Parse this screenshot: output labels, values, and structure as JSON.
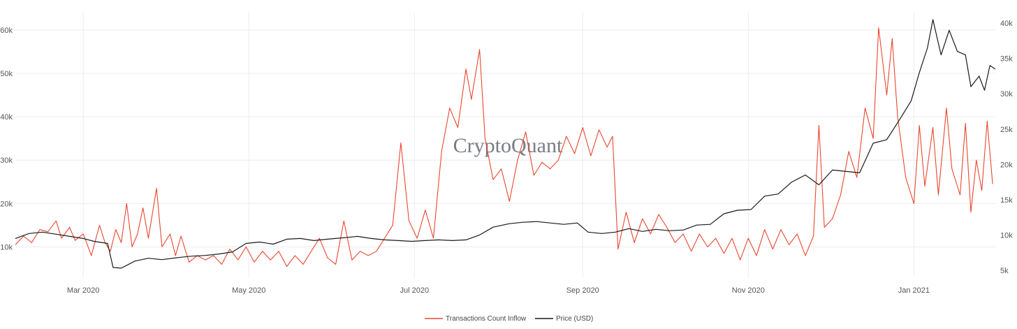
{
  "watermark": "CryptoQuant",
  "colors": {
    "inflow": "#e8472f",
    "price": "#1a1a1a",
    "grid": "#ececec"
  },
  "chart_data": {
    "type": "line",
    "title": "",
    "x_range": [
      "2020-02-05",
      "2021-01-31"
    ],
    "x_ticks": [
      {
        "date": "2020-03-01",
        "label": "Mar 2020"
      },
      {
        "date": "2020-05-01",
        "label": "May 2020"
      },
      {
        "date": "2020-07-01",
        "label": "Jul 2020"
      },
      {
        "date": "2020-09-01",
        "label": "Sep 2020"
      },
      {
        "date": "2020-11-01",
        "label": "Nov 2020"
      },
      {
        "date": "2021-01-01",
        "label": "Jan 2021"
      }
    ],
    "y_left": {
      "range": [
        3000,
        64000
      ],
      "ticks": [
        10000,
        20000,
        30000,
        40000,
        50000,
        60000
      ],
      "tick_labels": [
        "10k",
        "20k",
        "30k",
        "40k",
        "50k",
        "60k"
      ]
    },
    "y_right": {
      "range": [
        4000,
        41500
      ],
      "ticks": [
        5000,
        10000,
        15000,
        20000,
        25000,
        30000,
        35000,
        40000
      ],
      "tick_labels": [
        "5k",
        "10k",
        "15k",
        "20k",
        "25k",
        "30k",
        "35k",
        "40k"
      ]
    },
    "legend": {
      "position": "bottom-center"
    },
    "grid": true,
    "series": [
      {
        "name": "Transactions Count Inflow",
        "axis": "left",
        "points": [
          [
            "2020-02-05",
            10500
          ],
          [
            "2020-02-08",
            12500
          ],
          [
            "2020-02-11",
            11000
          ],
          [
            "2020-02-14",
            14000
          ],
          [
            "2020-02-17",
            13500
          ],
          [
            "2020-02-20",
            16000
          ],
          [
            "2020-02-22",
            12000
          ],
          [
            "2020-02-25",
            14500
          ],
          [
            "2020-02-27",
            11500
          ],
          [
            "2020-03-01",
            13000
          ],
          [
            "2020-03-04",
            8000
          ],
          [
            "2020-03-07",
            15000
          ],
          [
            "2020-03-09",
            11000
          ],
          [
            "2020-03-11",
            9000
          ],
          [
            "2020-03-13",
            14000
          ],
          [
            "2020-03-15",
            11000
          ],
          [
            "2020-03-17",
            20000
          ],
          [
            "2020-03-19",
            10000
          ],
          [
            "2020-03-21",
            13000
          ],
          [
            "2020-03-23",
            19000
          ],
          [
            "2020-03-25",
            12000
          ],
          [
            "2020-03-28",
            23500
          ],
          [
            "2020-03-30",
            10000
          ],
          [
            "2020-04-02",
            13000
          ],
          [
            "2020-04-04",
            8000
          ],
          [
            "2020-04-06",
            12500
          ],
          [
            "2020-04-09",
            6500
          ],
          [
            "2020-04-12",
            8000
          ],
          [
            "2020-04-15",
            7000
          ],
          [
            "2020-04-18",
            8000
          ],
          [
            "2020-04-21",
            6000
          ],
          [
            "2020-04-24",
            9500
          ],
          [
            "2020-04-27",
            7000
          ],
          [
            "2020-04-30",
            10000
          ],
          [
            "2020-05-03",
            6500
          ],
          [
            "2020-05-06",
            9000
          ],
          [
            "2020-05-09",
            7000
          ],
          [
            "2020-05-12",
            9000
          ],
          [
            "2020-05-15",
            5500
          ],
          [
            "2020-05-18",
            8000
          ],
          [
            "2020-05-21",
            6000
          ],
          [
            "2020-05-24",
            9000
          ],
          [
            "2020-05-27",
            12000
          ],
          [
            "2020-05-30",
            7500
          ],
          [
            "2020-06-02",
            6000
          ],
          [
            "2020-06-05",
            16000
          ],
          [
            "2020-06-08",
            7000
          ],
          [
            "2020-06-11",
            9000
          ],
          [
            "2020-06-14",
            8000
          ],
          [
            "2020-06-17",
            9000
          ],
          [
            "2020-06-20",
            12000
          ],
          [
            "2020-06-23",
            15000
          ],
          [
            "2020-06-26",
            34000
          ],
          [
            "2020-06-29",
            16000
          ],
          [
            "2020-07-02",
            12000
          ],
          [
            "2020-07-05",
            18500
          ],
          [
            "2020-07-08",
            12000
          ],
          [
            "2020-07-11",
            32000
          ],
          [
            "2020-07-14",
            42000
          ],
          [
            "2020-07-17",
            37500
          ],
          [
            "2020-07-20",
            51000
          ],
          [
            "2020-07-22",
            44000
          ],
          [
            "2020-07-25",
            55500
          ],
          [
            "2020-07-27",
            35000
          ],
          [
            "2020-07-30",
            25500
          ],
          [
            "2020-08-02",
            28000
          ],
          [
            "2020-08-05",
            20500
          ],
          [
            "2020-08-08",
            30000
          ],
          [
            "2020-08-11",
            36500
          ],
          [
            "2020-08-14",
            26500
          ],
          [
            "2020-08-17",
            29500
          ],
          [
            "2020-08-20",
            28000
          ],
          [
            "2020-08-23",
            30000
          ],
          [
            "2020-08-26",
            35500
          ],
          [
            "2020-08-29",
            31500
          ],
          [
            "2020-09-01",
            37500
          ],
          [
            "2020-09-04",
            31000
          ],
          [
            "2020-09-07",
            37000
          ],
          [
            "2020-09-10",
            33000
          ],
          [
            "2020-09-12",
            35500
          ],
          [
            "2020-09-14",
            9500
          ],
          [
            "2020-09-17",
            18000
          ],
          [
            "2020-09-20",
            11000
          ],
          [
            "2020-09-23",
            16500
          ],
          [
            "2020-09-26",
            13000
          ],
          [
            "2020-09-29",
            17500
          ],
          [
            "2020-10-02",
            14500
          ],
          [
            "2020-10-05",
            11000
          ],
          [
            "2020-10-08",
            13000
          ],
          [
            "2020-10-11",
            9000
          ],
          [
            "2020-10-14",
            13000
          ],
          [
            "2020-10-17",
            10000
          ],
          [
            "2020-10-20",
            12000
          ],
          [
            "2020-10-23",
            8500
          ],
          [
            "2020-10-26",
            12000
          ],
          [
            "2020-10-29",
            7000
          ],
          [
            "2020-11-01",
            12000
          ],
          [
            "2020-11-04",
            8000
          ],
          [
            "2020-11-07",
            14000
          ],
          [
            "2020-11-10",
            9500
          ],
          [
            "2020-11-13",
            14000
          ],
          [
            "2020-11-16",
            10500
          ],
          [
            "2020-11-19",
            13000
          ],
          [
            "2020-11-22",
            8000
          ],
          [
            "2020-11-25",
            12500
          ],
          [
            "2020-11-27",
            38000
          ],
          [
            "2020-11-29",
            14500
          ],
          [
            "2020-12-02",
            16500
          ],
          [
            "2020-12-05",
            22000
          ],
          [
            "2020-12-08",
            32000
          ],
          [
            "2020-12-11",
            26000
          ],
          [
            "2020-12-14",
            42000
          ],
          [
            "2020-12-17",
            35000
          ],
          [
            "2020-12-19",
            60500
          ],
          [
            "2020-12-22",
            45000
          ],
          [
            "2020-12-24",
            58000
          ],
          [
            "2020-12-26",
            40000
          ],
          [
            "2020-12-29",
            26000
          ],
          [
            "2021-01-01",
            20000
          ],
          [
            "2021-01-03",
            38000
          ],
          [
            "2021-01-05",
            24000
          ],
          [
            "2021-01-08",
            37500
          ],
          [
            "2021-01-10",
            22000
          ],
          [
            "2021-01-13",
            42000
          ],
          [
            "2021-01-15",
            28000
          ],
          [
            "2021-01-18",
            22000
          ],
          [
            "2021-01-20",
            38500
          ],
          [
            "2021-01-22",
            18000
          ],
          [
            "2021-01-24",
            30000
          ],
          [
            "2021-01-26",
            23000
          ],
          [
            "2021-01-28",
            39000
          ],
          [
            "2021-01-30",
            24500
          ]
        ]
      },
      {
        "name": "Price (USD)",
        "axis": "right",
        "points": [
          [
            "2020-02-05",
            9500
          ],
          [
            "2020-02-10",
            10200
          ],
          [
            "2020-02-15",
            10400
          ],
          [
            "2020-02-20",
            10100
          ],
          [
            "2020-02-25",
            9800
          ],
          [
            "2020-03-01",
            9500
          ],
          [
            "2020-03-05",
            9100
          ],
          [
            "2020-03-10",
            8800
          ],
          [
            "2020-03-12",
            5400
          ],
          [
            "2020-03-15",
            5300
          ],
          [
            "2020-03-20",
            6300
          ],
          [
            "2020-03-25",
            6700
          ],
          [
            "2020-03-30",
            6500
          ],
          [
            "2020-04-05",
            6800
          ],
          [
            "2020-04-10",
            7000
          ],
          [
            "2020-04-15",
            7100
          ],
          [
            "2020-04-20",
            7300
          ],
          [
            "2020-04-25",
            7600
          ],
          [
            "2020-04-30",
            8800
          ],
          [
            "2020-05-05",
            9000
          ],
          [
            "2020-05-10",
            8700
          ],
          [
            "2020-05-15",
            9400
          ],
          [
            "2020-05-20",
            9500
          ],
          [
            "2020-05-25",
            9200
          ],
          [
            "2020-05-30",
            9400
          ],
          [
            "2020-06-05",
            9600
          ],
          [
            "2020-06-10",
            9800
          ],
          [
            "2020-06-15",
            9500
          ],
          [
            "2020-06-20",
            9300
          ],
          [
            "2020-06-25",
            9200
          ],
          [
            "2020-06-30",
            9100
          ],
          [
            "2020-07-05",
            9200
          ],
          [
            "2020-07-10",
            9300
          ],
          [
            "2020-07-15",
            9200
          ],
          [
            "2020-07-20",
            9300
          ],
          [
            "2020-07-25",
            10000
          ],
          [
            "2020-07-30",
            11100
          ],
          [
            "2020-08-05",
            11600
          ],
          [
            "2020-08-10",
            11800
          ],
          [
            "2020-08-15",
            11900
          ],
          [
            "2020-08-20",
            11700
          ],
          [
            "2020-08-25",
            11500
          ],
          [
            "2020-08-30",
            11700
          ],
          [
            "2020-09-03",
            10400
          ],
          [
            "2020-09-08",
            10200
          ],
          [
            "2020-09-13",
            10400
          ],
          [
            "2020-09-18",
            10900
          ],
          [
            "2020-09-23",
            10500
          ],
          [
            "2020-09-28",
            10800
          ],
          [
            "2020-10-03",
            10600
          ],
          [
            "2020-10-08",
            10700
          ],
          [
            "2020-10-13",
            11400
          ],
          [
            "2020-10-18",
            11500
          ],
          [
            "2020-10-23",
            13000
          ],
          [
            "2020-10-28",
            13500
          ],
          [
            "2020-11-02",
            13600
          ],
          [
            "2020-11-07",
            15500
          ],
          [
            "2020-11-12",
            15800
          ],
          [
            "2020-11-17",
            17500
          ],
          [
            "2020-11-22",
            18500
          ],
          [
            "2020-11-27",
            17100
          ],
          [
            "2020-12-02",
            19200
          ],
          [
            "2020-12-07",
            19000
          ],
          [
            "2020-12-12",
            18800
          ],
          [
            "2020-12-17",
            23000
          ],
          [
            "2020-12-22",
            23500
          ],
          [
            "2020-12-27",
            26500
          ],
          [
            "2020-12-31",
            29000
          ],
          [
            "2021-01-03",
            33000
          ],
          [
            "2021-01-06",
            36500
          ],
          [
            "2021-01-08",
            40500
          ],
          [
            "2021-01-11",
            35500
          ],
          [
            "2021-01-14",
            39000
          ],
          [
            "2021-01-17",
            36000
          ],
          [
            "2021-01-20",
            35500
          ],
          [
            "2021-01-22",
            31000
          ],
          [
            "2021-01-25",
            32500
          ],
          [
            "2021-01-27",
            30500
          ],
          [
            "2021-01-29",
            34000
          ],
          [
            "2021-01-31",
            33500
          ]
        ]
      }
    ]
  }
}
